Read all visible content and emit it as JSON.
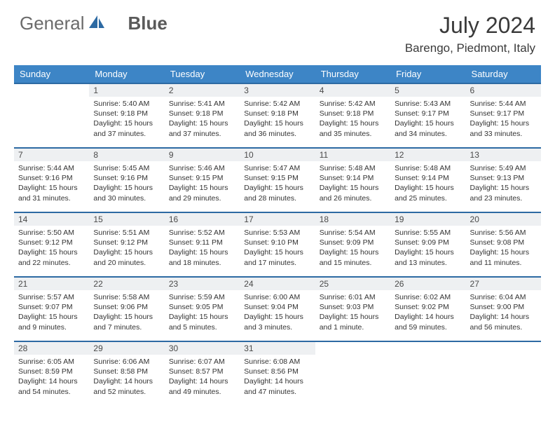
{
  "logo": {
    "part1": "General",
    "part2": "Blue"
  },
  "title": "July 2024",
  "location": "Barengo, Piedmont, Italy",
  "colors": {
    "header_bg": "#3d85c6",
    "header_text": "#ffffff",
    "row_divider": "#2d6aa3",
    "daynum_bg": "#eef0f2",
    "text": "#333333",
    "logo_gray": "#6b6b6b",
    "logo_blue": "#2d6aa3"
  },
  "weekdays": [
    "Sunday",
    "Monday",
    "Tuesday",
    "Wednesday",
    "Thursday",
    "Friday",
    "Saturday"
  ],
  "weeks": [
    [
      null,
      {
        "num": "1",
        "sunrise": "Sunrise: 5:40 AM",
        "sunset": "Sunset: 9:18 PM",
        "daylight": "Daylight: 15 hours and 37 minutes."
      },
      {
        "num": "2",
        "sunrise": "Sunrise: 5:41 AM",
        "sunset": "Sunset: 9:18 PM",
        "daylight": "Daylight: 15 hours and 37 minutes."
      },
      {
        "num": "3",
        "sunrise": "Sunrise: 5:42 AM",
        "sunset": "Sunset: 9:18 PM",
        "daylight": "Daylight: 15 hours and 36 minutes."
      },
      {
        "num": "4",
        "sunrise": "Sunrise: 5:42 AM",
        "sunset": "Sunset: 9:18 PM",
        "daylight": "Daylight: 15 hours and 35 minutes."
      },
      {
        "num": "5",
        "sunrise": "Sunrise: 5:43 AM",
        "sunset": "Sunset: 9:17 PM",
        "daylight": "Daylight: 15 hours and 34 minutes."
      },
      {
        "num": "6",
        "sunrise": "Sunrise: 5:44 AM",
        "sunset": "Sunset: 9:17 PM",
        "daylight": "Daylight: 15 hours and 33 minutes."
      }
    ],
    [
      {
        "num": "7",
        "sunrise": "Sunrise: 5:44 AM",
        "sunset": "Sunset: 9:16 PM",
        "daylight": "Daylight: 15 hours and 31 minutes."
      },
      {
        "num": "8",
        "sunrise": "Sunrise: 5:45 AM",
        "sunset": "Sunset: 9:16 PM",
        "daylight": "Daylight: 15 hours and 30 minutes."
      },
      {
        "num": "9",
        "sunrise": "Sunrise: 5:46 AM",
        "sunset": "Sunset: 9:15 PM",
        "daylight": "Daylight: 15 hours and 29 minutes."
      },
      {
        "num": "10",
        "sunrise": "Sunrise: 5:47 AM",
        "sunset": "Sunset: 9:15 PM",
        "daylight": "Daylight: 15 hours and 28 minutes."
      },
      {
        "num": "11",
        "sunrise": "Sunrise: 5:48 AM",
        "sunset": "Sunset: 9:14 PM",
        "daylight": "Daylight: 15 hours and 26 minutes."
      },
      {
        "num": "12",
        "sunrise": "Sunrise: 5:48 AM",
        "sunset": "Sunset: 9:14 PM",
        "daylight": "Daylight: 15 hours and 25 minutes."
      },
      {
        "num": "13",
        "sunrise": "Sunrise: 5:49 AM",
        "sunset": "Sunset: 9:13 PM",
        "daylight": "Daylight: 15 hours and 23 minutes."
      }
    ],
    [
      {
        "num": "14",
        "sunrise": "Sunrise: 5:50 AM",
        "sunset": "Sunset: 9:12 PM",
        "daylight": "Daylight: 15 hours and 22 minutes."
      },
      {
        "num": "15",
        "sunrise": "Sunrise: 5:51 AM",
        "sunset": "Sunset: 9:12 PM",
        "daylight": "Daylight: 15 hours and 20 minutes."
      },
      {
        "num": "16",
        "sunrise": "Sunrise: 5:52 AM",
        "sunset": "Sunset: 9:11 PM",
        "daylight": "Daylight: 15 hours and 18 minutes."
      },
      {
        "num": "17",
        "sunrise": "Sunrise: 5:53 AM",
        "sunset": "Sunset: 9:10 PM",
        "daylight": "Daylight: 15 hours and 17 minutes."
      },
      {
        "num": "18",
        "sunrise": "Sunrise: 5:54 AM",
        "sunset": "Sunset: 9:09 PM",
        "daylight": "Daylight: 15 hours and 15 minutes."
      },
      {
        "num": "19",
        "sunrise": "Sunrise: 5:55 AM",
        "sunset": "Sunset: 9:09 PM",
        "daylight": "Daylight: 15 hours and 13 minutes."
      },
      {
        "num": "20",
        "sunrise": "Sunrise: 5:56 AM",
        "sunset": "Sunset: 9:08 PM",
        "daylight": "Daylight: 15 hours and 11 minutes."
      }
    ],
    [
      {
        "num": "21",
        "sunrise": "Sunrise: 5:57 AM",
        "sunset": "Sunset: 9:07 PM",
        "daylight": "Daylight: 15 hours and 9 minutes."
      },
      {
        "num": "22",
        "sunrise": "Sunrise: 5:58 AM",
        "sunset": "Sunset: 9:06 PM",
        "daylight": "Daylight: 15 hours and 7 minutes."
      },
      {
        "num": "23",
        "sunrise": "Sunrise: 5:59 AM",
        "sunset": "Sunset: 9:05 PM",
        "daylight": "Daylight: 15 hours and 5 minutes."
      },
      {
        "num": "24",
        "sunrise": "Sunrise: 6:00 AM",
        "sunset": "Sunset: 9:04 PM",
        "daylight": "Daylight: 15 hours and 3 minutes."
      },
      {
        "num": "25",
        "sunrise": "Sunrise: 6:01 AM",
        "sunset": "Sunset: 9:03 PM",
        "daylight": "Daylight: 15 hours and 1 minute."
      },
      {
        "num": "26",
        "sunrise": "Sunrise: 6:02 AM",
        "sunset": "Sunset: 9:02 PM",
        "daylight": "Daylight: 14 hours and 59 minutes."
      },
      {
        "num": "27",
        "sunrise": "Sunrise: 6:04 AM",
        "sunset": "Sunset: 9:00 PM",
        "daylight": "Daylight: 14 hours and 56 minutes."
      }
    ],
    [
      {
        "num": "28",
        "sunrise": "Sunrise: 6:05 AM",
        "sunset": "Sunset: 8:59 PM",
        "daylight": "Daylight: 14 hours and 54 minutes."
      },
      {
        "num": "29",
        "sunrise": "Sunrise: 6:06 AM",
        "sunset": "Sunset: 8:58 PM",
        "daylight": "Daylight: 14 hours and 52 minutes."
      },
      {
        "num": "30",
        "sunrise": "Sunrise: 6:07 AM",
        "sunset": "Sunset: 8:57 PM",
        "daylight": "Daylight: 14 hours and 49 minutes."
      },
      {
        "num": "31",
        "sunrise": "Sunrise: 6:08 AM",
        "sunset": "Sunset: 8:56 PM",
        "daylight": "Daylight: 14 hours and 47 minutes."
      },
      null,
      null,
      null
    ]
  ]
}
